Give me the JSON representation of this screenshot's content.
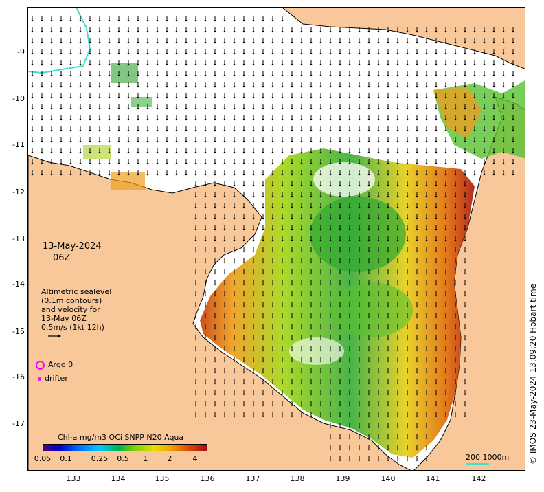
{
  "map": {
    "lat_ticks": [
      "-9",
      "-10",
      "-11",
      "-12",
      "-13",
      "-14",
      "-15",
      "-16",
      "-17"
    ],
    "lon_ticks": [
      "133",
      "134",
      "135",
      "136",
      "137",
      "138",
      "139",
      "140",
      "141",
      "142"
    ],
    "lon_range": [
      132,
      143
    ],
    "lat_range": [
      -8,
      -17.7
    ],
    "colors": {
      "land": "#f8c89a",
      "water": "#ffffff",
      "coastline": "#000000",
      "argo": "#ff00ff",
      "scale_bar": "#40e0d0"
    }
  },
  "date": {
    "day": "13-May-2024",
    "time": "06Z"
  },
  "legend": {
    "line1": "Altimetric sealevel",
    "line2": "(0.1m contours)",
    "line3": "and velocity for",
    "line4": "13-May 06Z",
    "line5": "0.5m/s (1kt 12h)",
    "argo": "Argo 0",
    "drifter": "drifter"
  },
  "colorbar": {
    "title": "Chl-a mg/m3 OCi SNPP N20 Aqua",
    "ticks": [
      "0.05",
      "0.1",
      "0.25",
      "0.5",
      "1",
      "2",
      "4"
    ]
  },
  "scale": {
    "label": "200  1000m"
  },
  "copyright": "© IMOS 23-May-2024 13:09:20 Hobart time"
}
